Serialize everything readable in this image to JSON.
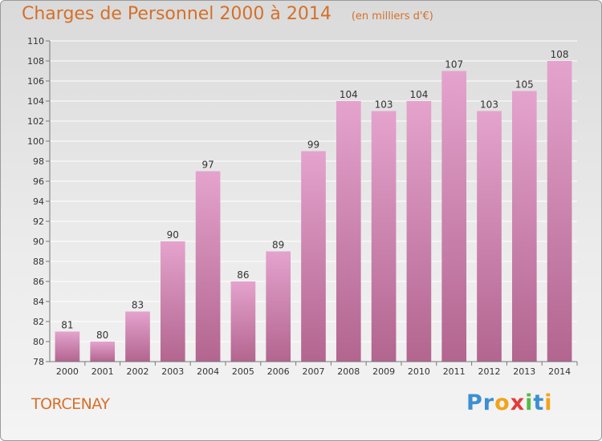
{
  "header": {
    "title": "Charges de Personnel 2000 à 2014",
    "subtitle": "(en milliers d'€)"
  },
  "footer": {
    "commune": "TORCENAY",
    "logo_text": "Proxiti",
    "logo_letters": [
      {
        "ch": "P",
        "color": "#3c8fd1"
      },
      {
        "ch": "r",
        "color": "#3c8fd1"
      },
      {
        "ch": "o",
        "color": "#f2a31b"
      },
      {
        "ch": "x",
        "color": "#e33b3b"
      },
      {
        "ch": "i",
        "color": "#58b947"
      },
      {
        "ch": "t",
        "color": "#3c8fd1"
      },
      {
        "ch": "i",
        "color": "#f2a31b"
      }
    ]
  },
  "colors": {
    "title": "#d4702a",
    "bar_top": "#e4a3cd",
    "bar_bottom": "#b2658f",
    "grid": "#ffffff",
    "text": "#333333"
  },
  "chart_data": {
    "type": "bar",
    "title": "Charges de Personnel 2000 à 2014",
    "subtitle": "(en milliers d'€)",
    "categories": [
      "2000",
      "2001",
      "2002",
      "2003",
      "2004",
      "2005",
      "2006",
      "2007",
      "2008",
      "2009",
      "2010",
      "2011",
      "2012",
      "2013",
      "2014"
    ],
    "values": [
      81,
      80,
      83,
      90,
      97,
      86,
      89,
      99,
      104,
      103,
      104,
      107,
      103,
      105,
      108
    ],
    "ylim": [
      78,
      110
    ],
    "yticks": [
      78,
      80,
      82,
      84,
      86,
      88,
      90,
      92,
      94,
      96,
      98,
      100,
      102,
      104,
      106,
      108,
      110
    ],
    "xlabel": "",
    "ylabel": "",
    "grid": true,
    "data_labels": true
  }
}
